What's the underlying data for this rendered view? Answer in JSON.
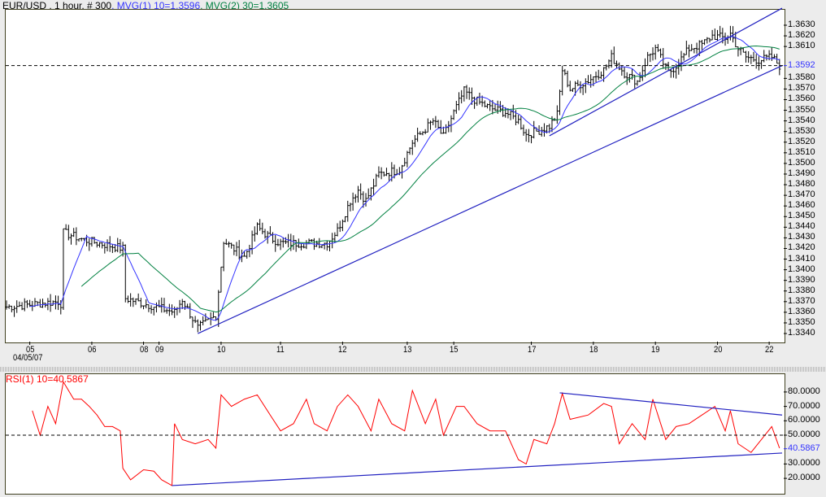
{
  "header": {
    "symbol": "EUR/USD , 1 hour, # 300",
    "mvg1": ", MVG(1) 10=1.3596",
    "mvg2": ", MVG(2) 30=1.3605"
  },
  "rsi_header": "RSI(1) 10=40.5867",
  "date_label": "04/05/07",
  "colors": {
    "bars": "#000000",
    "mvg1": "#3333ff",
    "mvg2": "#008040",
    "trend": "#2020c0",
    "rsi": "#ff0000",
    "last": "#3333ff"
  },
  "chart_data": [
    {
      "type": "ohlc",
      "title": "EUR/USD , 1 hour, # 300",
      "bars": 300,
      "ylim": [
        1.3335,
        1.3645
      ],
      "yticks": [
        "1.3630",
        "1.3620",
        "1.3610",
        "1.3580",
        "1.3570",
        "1.3560",
        "1.3550",
        "1.3540",
        "1.3530",
        "1.3520",
        "1.3510",
        "1.3500",
        "1.3490",
        "1.3480",
        "1.3470",
        "1.3460",
        "1.3450",
        "1.3440",
        "1.3430",
        "1.3420",
        "1.3410",
        "1.3400",
        "1.3390",
        "1.3380",
        "1.3370",
        "1.3360",
        "1.3350",
        "1.3340"
      ],
      "last_value": "1.3592",
      "xticks": [
        {
          "label": "05",
          "bar": 9
        },
        {
          "label": "06",
          "bar": 33
        },
        {
          "label": "08",
          "bar": 53
        },
        {
          "label": "09",
          "bar": 59
        },
        {
          "label": "10",
          "bar": 83
        },
        {
          "label": "11",
          "bar": 106
        },
        {
          "label": "12",
          "bar": 130
        },
        {
          "label": "13",
          "bar": 155
        },
        {
          "label": "15",
          "bar": 173
        },
        {
          "label": "17",
          "bar": 203
        },
        {
          "label": "18",
          "bar": 227
        },
        {
          "label": "19",
          "bar": 251
        },
        {
          "label": "20",
          "bar": 275
        },
        {
          "label": "22",
          "bar": 295
        }
      ],
      "close_path": [
        [
          0,
          1.3365
        ],
        [
          20,
          1.337
        ],
        [
          21,
          1.3368
        ],
        [
          22,
          1.3435
        ],
        [
          30,
          1.3428
        ],
        [
          45,
          1.342
        ],
        [
          46,
          1.3373
        ],
        [
          65,
          1.336
        ],
        [
          68,
          1.3372
        ],
        [
          74,
          1.3345
        ],
        [
          81,
          1.3357
        ],
        [
          84,
          1.3427
        ],
        [
          92,
          1.3412
        ],
        [
          97,
          1.344
        ],
        [
          102,
          1.343
        ],
        [
          106,
          1.3425
        ],
        [
          124,
          1.3425
        ],
        [
          128,
          1.3437
        ],
        [
          133,
          1.3465
        ],
        [
          136,
          1.3475
        ],
        [
          139,
          1.3465
        ],
        [
          144,
          1.349
        ],
        [
          152,
          1.3494
        ],
        [
          157,
          1.352
        ],
        [
          165,
          1.354
        ],
        [
          169,
          1.3525
        ],
        [
          173,
          1.3548
        ],
        [
          177,
          1.3568
        ],
        [
          181,
          1.356
        ],
        [
          187,
          1.3552
        ],
        [
          193,
          1.3548
        ],
        [
          198,
          1.354
        ],
        [
          201,
          1.3527
        ],
        [
          206,
          1.3531
        ],
        [
          210,
          1.3535
        ],
        [
          213,
          1.3546
        ],
        [
          215,
          1.3588
        ],
        [
          218,
          1.357
        ],
        [
          225,
          1.3578
        ],
        [
          231,
          1.3588
        ],
        [
          234,
          1.36
        ],
        [
          239,
          1.3585
        ],
        [
          244,
          1.3577
        ],
        [
          248,
          1.36
        ],
        [
          251,
          1.3608
        ],
        [
          256,
          1.3585
        ],
        [
          259,
          1.3592
        ],
        [
          264,
          1.3608
        ],
        [
          269,
          1.3612
        ],
        [
          273,
          1.362
        ],
        [
          278,
          1.3618
        ],
        [
          280,
          1.3622
        ],
        [
          283,
          1.3608
        ],
        [
          286,
          1.36
        ],
        [
          291,
          1.3597
        ],
        [
          296,
          1.36
        ],
        [
          299,
          1.3592
        ]
      ],
      "series": [
        {
          "name": "MVG(1) 10",
          "period": 10,
          "last": 1.3596
        },
        {
          "name": "MVG(2) 30",
          "period": 30,
          "last": 1.3605
        }
      ],
      "trendlines": [
        {
          "from": [
            74,
            1.334
          ],
          "to": [
            300,
            1.3592
          ]
        },
        {
          "from": [
            210,
            1.3526
          ],
          "to": [
            300,
            1.3646
          ]
        }
      ]
    },
    {
      "type": "line",
      "title": "RSI(1) 10=40.5867",
      "ylim": [
        13,
        88
      ],
      "yticks": [
        "80.0000",
        "70.0000",
        "60.0000",
        "50.0000",
        "30.0000",
        "20.0000"
      ],
      "last_value": "40.5867",
      "reference_line": 50,
      "values": [
        [
          10,
          67
        ],
        [
          13,
          50
        ],
        [
          16,
          70
        ],
        [
          19,
          58
        ],
        [
          22,
          87
        ],
        [
          26,
          75
        ],
        [
          29,
          75
        ],
        [
          32,
          70
        ],
        [
          35,
          64
        ],
        [
          38,
          56
        ],
        [
          41,
          56
        ],
        [
          44,
          53
        ],
        [
          45,
          27
        ],
        [
          48,
          19
        ],
        [
          53,
          26
        ],
        [
          57,
          25
        ],
        [
          60,
          19
        ],
        [
          64,
          15
        ],
        [
          65,
          58
        ],
        [
          68,
          47
        ],
        [
          73,
          44
        ],
        [
          78,
          47
        ],
        [
          81,
          41
        ],
        [
          83,
          78
        ],
        [
          87,
          70
        ],
        [
          92,
          75
        ],
        [
          97,
          78
        ],
        [
          102,
          64
        ],
        [
          106,
          53
        ],
        [
          111,
          58
        ],
        [
          116,
          75
        ],
        [
          119,
          58
        ],
        [
          124,
          53
        ],
        [
          128,
          70
        ],
        [
          132,
          78
        ],
        [
          136,
          70
        ],
        [
          141,
          53
        ],
        [
          144,
          75
        ],
        [
          149,
          58
        ],
        [
          154,
          53
        ],
        [
          157,
          81
        ],
        [
          162,
          58
        ],
        [
          166,
          75
        ],
        [
          169,
          50
        ],
        [
          174,
          70
        ],
        [
          177,
          70
        ],
        [
          182,
          58
        ],
        [
          187,
          53
        ],
        [
          193,
          53
        ],
        [
          198,
          33
        ],
        [
          201,
          30
        ],
        [
          204,
          47
        ],
        [
          209,
          44
        ],
        [
          212,
          58
        ],
        [
          215,
          79
        ],
        [
          218,
          61
        ],
        [
          225,
          64
        ],
        [
          231,
          72
        ],
        [
          234,
          70
        ],
        [
          237,
          44
        ],
        [
          242,
          58
        ],
        [
          247,
          47
        ],
        [
          250,
          75
        ],
        [
          255,
          47
        ],
        [
          259,
          56
        ],
        [
          264,
          58
        ],
        [
          269,
          64
        ],
        [
          274,
          70
        ],
        [
          278,
          53
        ],
        [
          280,
          67
        ],
        [
          283,
          44
        ],
        [
          288,
          38
        ],
        [
          292,
          47
        ],
        [
          296,
          56
        ],
        [
          299,
          41
        ]
      ],
      "trendlines": [
        {
          "from": [
            64,
            15
          ],
          "to": [
            300,
            37.6
          ]
        },
        {
          "from": [
            214,
            79.4
          ],
          "to": [
            300,
            64
          ]
        }
      ]
    }
  ]
}
